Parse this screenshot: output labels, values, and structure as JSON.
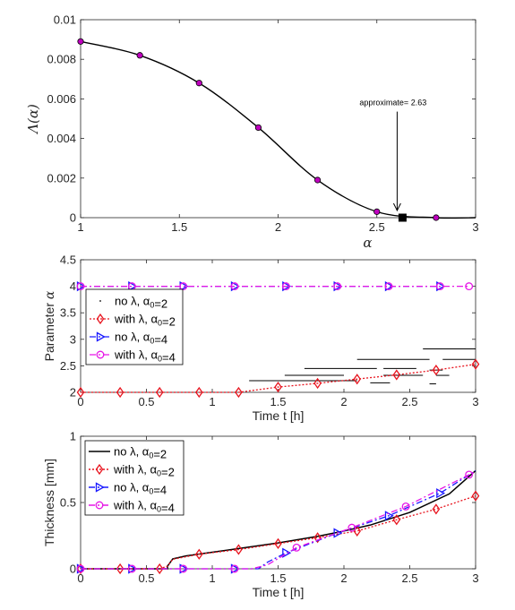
{
  "chart_data": [
    {
      "type": "line",
      "title": "",
      "xlabel": "α",
      "ylabel": "Λ(α)",
      "xlim": [
        1,
        3
      ],
      "ylim": [
        0,
        0.01
      ],
      "xticks": [
        1,
        1.5,
        2,
        2.5,
        3
      ],
      "xtick_labels": [
        "1",
        "1.5",
        "2",
        "2.5",
        "3"
      ],
      "yticks": [
        0,
        0.002,
        0.004,
        0.006,
        0.008,
        0.01
      ],
      "ytick_labels": [
        "0",
        "0.002",
        "0.004",
        "0.006",
        "0.008",
        "0.01"
      ],
      "grid": false,
      "series": [
        {
          "color": "#000000",
          "marker_color": "#bf00bf",
          "x": [
            1,
            1.3,
            1.6,
            1.9,
            2.2,
            2.5,
            2.8
          ],
          "y": [
            0.0089,
            0.0082,
            0.0068,
            0.00455,
            0.0019,
            0.0003,
            0
          ]
        }
      ],
      "annotation": {
        "text": "approximate= 2.63",
        "x": 2.63,
        "y": 0,
        "arrow_from_y": 0.0059
      }
    },
    {
      "type": "line",
      "title": "",
      "xlabel": "Time t [h]",
      "ylabel": "Parameter α",
      "xlim": [
        0,
        3
      ],
      "ylim": [
        2,
        4.5
      ],
      "xticks": [
        0,
        0.5,
        1,
        1.5,
        2,
        2.5,
        3
      ],
      "xtick_labels": [
        "0",
        "0.5",
        "1",
        "1.5",
        "2",
        "2.5",
        "3"
      ],
      "yticks": [
        2,
        2.5,
        3,
        3.5,
        4,
        4.5
      ],
      "ytick_labels": [
        "2",
        "2.5",
        "3",
        "3.5",
        "4",
        "4.5"
      ],
      "grid": false,
      "legend_position": "middle-left",
      "series": [
        {
          "name": "no λ, α0=2",
          "style": "dots",
          "color": "#000000",
          "segments": [
            {
              "y": 2.82,
              "x": [
                2.6,
                3.0
              ]
            },
            {
              "y": 2.62,
              "x": [
                2.1,
                2.65
              ]
            },
            {
              "y": 2.62,
              "x": [
                2.75,
                3.0
              ]
            },
            {
              "y": 2.45,
              "x": [
                1.7,
                2.25
              ]
            },
            {
              "y": 2.45,
              "x": [
                2.3,
                2.55
              ]
            },
            {
              "y": 2.42,
              "x": [
                2.65,
                2.75
              ]
            },
            {
              "y": 2.32,
              "x": [
                1.55,
                2.0
              ]
            },
            {
              "y": 2.32,
              "x": [
                2.3,
                2.6
              ]
            },
            {
              "y": 2.32,
              "x": [
                2.7,
                2.8
              ]
            },
            {
              "y": 2.22,
              "x": [
                1.28,
                2.1
              ]
            },
            {
              "y": 2.18,
              "x": [
                2.2,
                2.35
              ]
            },
            {
              "y": 2.16,
              "x": [
                2.65,
                2.7
              ]
            }
          ]
        },
        {
          "name": "with λ, α0=2",
          "style": "dotted-diamond",
          "color": "#e8141e",
          "x": [
            0,
            0.3,
            0.6,
            0.9,
            1.2,
            1.5,
            1.8,
            2.1,
            2.4,
            2.7,
            3.0
          ],
          "y": [
            2,
            2,
            2,
            2,
            2.0,
            2.1,
            2.17,
            2.25,
            2.33,
            2.42,
            2.53
          ]
        },
        {
          "name": "no λ, α0=4",
          "style": "dashdot-triangle",
          "color": "#1a1aff",
          "x": [
            0,
            0.39,
            0.78,
            1.17,
            1.56,
            1.95,
            2.34,
            2.73
          ],
          "y": [
            4,
            4,
            4,
            4,
            4,
            4,
            4,
            4
          ]
        },
        {
          "name": "with λ, α0=4",
          "style": "dashdot-circle",
          "color": "#e616e6",
          "x": [
            0,
            0.39,
            0.78,
            1.17,
            1.56,
            1.95,
            2.34,
            2.73,
            2.95
          ],
          "y": [
            4,
            4,
            4,
            4,
            4,
            4,
            4,
            4,
            4
          ]
        }
      ]
    },
    {
      "type": "line",
      "title": "",
      "xlabel": "Time t [h]",
      "ylabel": "Thickness [mm]",
      "xlim": [
        0,
        3
      ],
      "ylim": [
        0,
        1
      ],
      "xticks": [
        0,
        0.5,
        1,
        1.5,
        2,
        2.5,
        3
      ],
      "xtick_labels": [
        "0",
        "0.5",
        "1",
        "1.5",
        "2",
        "2.5",
        "3"
      ],
      "yticks": [
        0,
        0.5,
        1
      ],
      "ytick_labels": [
        "0",
        "0.5",
        "1"
      ],
      "grid": false,
      "legend_position": "top-left",
      "series": [
        {
          "name": "no λ, α0=2",
          "style": "solid",
          "color": "#000000",
          "x": [
            0,
            0.66,
            0.66,
            0.7,
            0.8,
            1.0,
            1.2,
            1.5,
            1.8,
            2.0,
            2.2,
            2.5,
            2.8,
            3.0
          ],
          "y": [
            0,
            0,
            0.02,
            0.075,
            0.097,
            0.125,
            0.153,
            0.195,
            0.245,
            0.285,
            0.33,
            0.425,
            0.565,
            0.74
          ]
        },
        {
          "name": "with λ, α0=2",
          "style": "dotted-diamond",
          "color": "#e8141e",
          "x": [
            0,
            0.3,
            0.6,
            0.66,
            0.7,
            0.9,
            1.2,
            1.5,
            1.8,
            2.1,
            2.4,
            2.7,
            3.0
          ],
          "y": [
            0,
            0,
            0,
            0.02,
            0.072,
            0.11,
            0.145,
            0.19,
            0.235,
            0.285,
            0.37,
            0.45,
            0.55
          ]
        },
        {
          "name": "no λ, α0=4",
          "style": "dashdot-triangle",
          "color": "#1a1aff",
          "x": [
            0,
            0.39,
            0.78,
            1.17,
            1.35,
            1.42,
            1.56,
            1.95,
            2.34,
            2.73,
            3.0
          ],
          "y": [
            0,
            0,
            0,
            0,
            0,
            0.05,
            0.12,
            0.27,
            0.4,
            0.57,
            0.74
          ]
        },
        {
          "name": "with λ, α0=4",
          "style": "dashdot-circle",
          "color": "#e616e6",
          "x": [
            0,
            0.39,
            0.78,
            1.17,
            1.3,
            1.42,
            1.64,
            2.06,
            2.47,
            2.95,
            3.0
          ],
          "y": [
            0,
            0,
            0,
            0,
            0,
            0.03,
            0.16,
            0.31,
            0.47,
            0.71,
            0.73
          ]
        }
      ]
    }
  ]
}
